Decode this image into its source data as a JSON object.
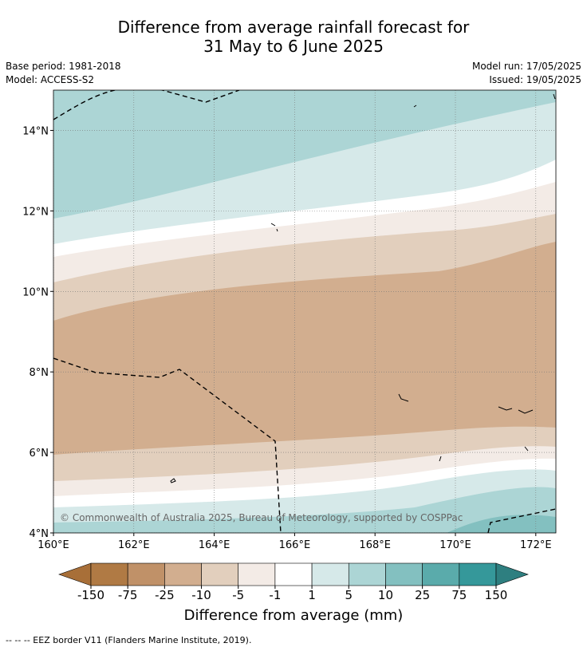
{
  "title_line1": "Difference from average rainfall forecast for",
  "title_line2": "31 May to 6 June 2025",
  "base_period": "Base period: 1981-2018",
  "model": "Model: ACCESS-S2",
  "model_run": "Model run: 17/05/2025",
  "issued": "Issued: 19/05/2025",
  "copyright": "© Commonwealth of Australia 2025, Bureau of Meteorology, supported by COSPPac",
  "footnote": "--  --  -- EEZ border V11 (Flanders Marine Institute, 2019).",
  "chart_data": {
    "type": "heatmap",
    "title": "Difference from average rainfall forecast for 31 May to 6 June 2025",
    "xlim": [
      160,
      172.5
    ],
    "ylim": [
      4,
      15
    ],
    "x_ticks": [
      "160°E",
      "162°E",
      "164°E",
      "166°E",
      "168°E",
      "170°E",
      "172°E"
    ],
    "y_ticks": [
      "4°N",
      "6°N",
      "8°N",
      "10°N",
      "12°N",
      "14°N"
    ],
    "grid": true,
    "colorbar": {
      "label": "Difference from average (mm)",
      "ticks": [
        "-150",
        "-75",
        "-25",
        "-10",
        "-5",
        "-1",
        "1",
        "5",
        "10",
        "25",
        "75",
        "150"
      ],
      "colors": [
        "#a86f38",
        "#b07a44",
        "#c09168",
        "#d2ae8f",
        "#e2cfbd",
        "#f3ebe6",
        "#ffffff",
        "#d6e9e9",
        "#acd5d5",
        "#83c0c0",
        "#5aabab",
        "#35989a",
        "#2e7f80"
      ]
    }
  }
}
